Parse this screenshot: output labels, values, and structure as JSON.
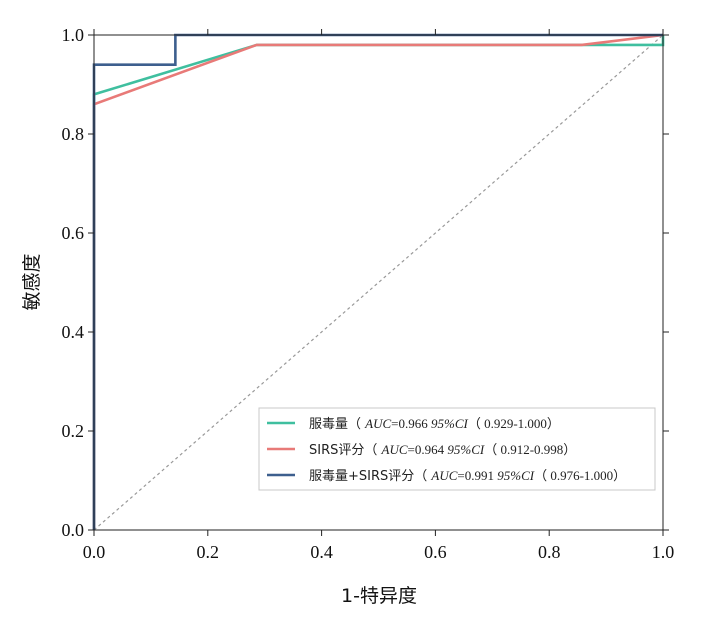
{
  "chart_data": {
    "type": "line",
    "xlabel": "1-特异度",
    "ylabel": "敏感度",
    "xlim": [
      0,
      1
    ],
    "ylim": [
      0,
      1
    ],
    "xticks": [
      "0.0",
      "0.2",
      "0.4",
      "0.6",
      "0.8",
      "1.0"
    ],
    "yticks": [
      "0.0",
      "0.2",
      "0.4",
      "0.6",
      "0.8",
      "1.0"
    ],
    "grid": false,
    "legend_position": "bottom-right",
    "reference_line": {
      "x": [
        0,
        1
      ],
      "y": [
        0,
        1
      ],
      "style": "dashed",
      "color": "#999999"
    },
    "series": [
      {
        "name": "服毒量",
        "legend_prefix": "服毒量（ ",
        "auc_label": "AUC",
        "auc_value": "=0.966 ",
        "ci_label": "95%CI",
        "ci_value": "（ 0.929-1.000）",
        "color": "#3fbf9f",
        "x": [
          0,
          0,
          0.286,
          1,
          1
        ],
        "y": [
          0,
          0.88,
          0.98,
          0.98,
          1.0
        ]
      },
      {
        "name": "SIRS评分",
        "legend_prefix": "SIRS评分（ ",
        "auc_label": "AUC",
        "auc_value": "=0.964 ",
        "ci_label": "95%CI",
        "ci_value": "（ 0.912-0.998）",
        "color": "#e87a78",
        "x": [
          0,
          0,
          0.286,
          0.857,
          1
        ],
        "y": [
          0,
          0.86,
          0.98,
          0.98,
          1.0
        ]
      },
      {
        "name": "服毒量+SIRS评分",
        "legend_prefix": "服毒量+SIRS评分（ ",
        "auc_label": "AUC",
        "auc_value": "=0.991 ",
        "ci_label": "95%CI",
        "ci_value": "（ 0.976-1.000）",
        "color": "#3d5f8e",
        "x": [
          0,
          0,
          0.143,
          0.143,
          1
        ],
        "y": [
          0,
          0.94,
          0.94,
          1.0,
          1.0
        ]
      }
    ]
  }
}
